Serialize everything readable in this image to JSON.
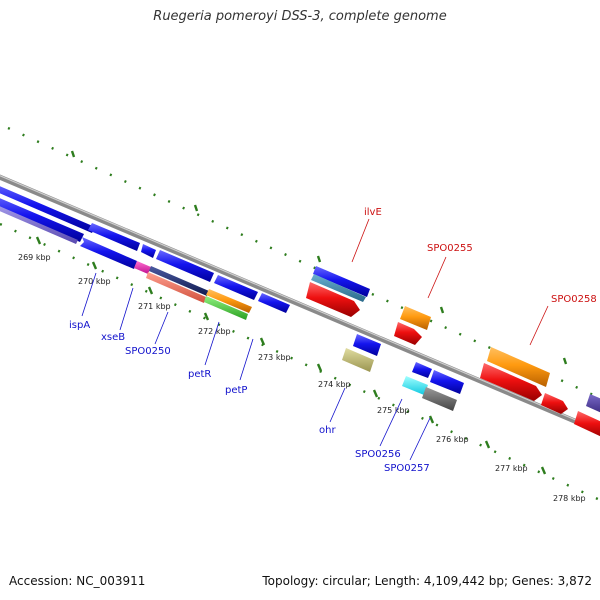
{
  "title": "Ruegeria pomeroyi DSS-3, complete genome",
  "footer": {
    "accession": "Accession: NC_003911",
    "summary": "Topology: circular; Length: 4,109,442 bp; Genes: 3,872"
  },
  "colors": {
    "background": "#ffffff",
    "backbone": "#8a8a8a",
    "tick": "#2e7d1e",
    "forward_label": "#cc1111",
    "reverse_label": "#1111cc"
  },
  "ruler": {
    "labels": [
      "269 kbp",
      "270 kbp",
      "271 kbp",
      "272 kbp",
      "273 kbp",
      "274 kbp",
      "275 kbp",
      "276 kbp",
      "277 kbp",
      "278 kbp"
    ]
  },
  "genes": {
    "forward": [
      {
        "name": "ilvE",
        "color": "red"
      },
      {
        "name": "SPO0255",
        "color": "orange"
      },
      {
        "name": "SPO0258",
        "color": "orange"
      }
    ],
    "reverse": [
      {
        "name": "ispA",
        "color": "blue"
      },
      {
        "name": "xseB",
        "color": "magenta"
      },
      {
        "name": "SPO0250",
        "color": "salmon"
      },
      {
        "name": "petR",
        "color": "green"
      },
      {
        "name": "petP",
        "color": "blue"
      },
      {
        "name": "ohr",
        "color": "khaki"
      },
      {
        "name": "SPO0256",
        "color": "cyan"
      },
      {
        "name": "SPO0257",
        "color": "gray"
      }
    ]
  }
}
